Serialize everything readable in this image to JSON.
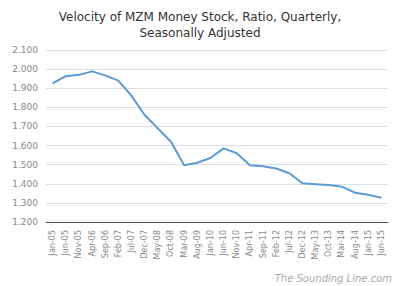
{
  "chart_data": {
    "type": "line",
    "title": "Velocity of MZM Money Stock, Ratio, Quarterly,\nSeasonally Adjusted",
    "annotations": [
      "The Sounding Line.com"
    ],
    "categories": [
      "Jan-05",
      "Jun-05",
      "Nov-05",
      "Apr-06",
      "Sep-06",
      "Feb-07",
      "Jul-07",
      "Dec-07",
      "May-08",
      "Oct-08",
      "Mar-09",
      "Aug-09",
      "Jan-10",
      "Jun-10",
      "Nov-10",
      "Apr-11",
      "Sep-11",
      "Feb-12",
      "Jul-12",
      "Dec-12",
      "May-13",
      "Oct-13",
      "Mar-14",
      "Aug-14",
      "Jan-15",
      "Jun-15"
    ],
    "values": [
      1.925,
      1.963,
      1.97,
      1.988,
      1.967,
      1.94,
      1.86,
      1.76,
      1.69,
      1.62,
      1.497,
      1.51,
      1.535,
      1.585,
      1.56,
      1.497,
      1.492,
      1.48,
      1.455,
      1.403,
      1.398,
      1.393,
      1.385,
      1.353,
      1.342,
      1.327
    ],
    "color": "#5b9bd5",
    "ylim": [
      1.2,
      2.1
    ],
    "yticks": [
      {
        "value": 1.2,
        "label": "1.200"
      },
      {
        "value": 1.3,
        "label": "1.300"
      },
      {
        "value": 1.4,
        "label": "1.400"
      },
      {
        "value": 1.5,
        "label": "1.500"
      },
      {
        "value": 1.6,
        "label": "1.600"
      },
      {
        "value": 1.7,
        "label": "1.700"
      },
      {
        "value": 1.8,
        "label": "1.800"
      },
      {
        "value": 1.9,
        "label": "1.900"
      },
      {
        "value": 2.0,
        "label": "2.000"
      },
      {
        "value": 2.1,
        "label": "2.100"
      }
    ],
    "grid": true
  }
}
